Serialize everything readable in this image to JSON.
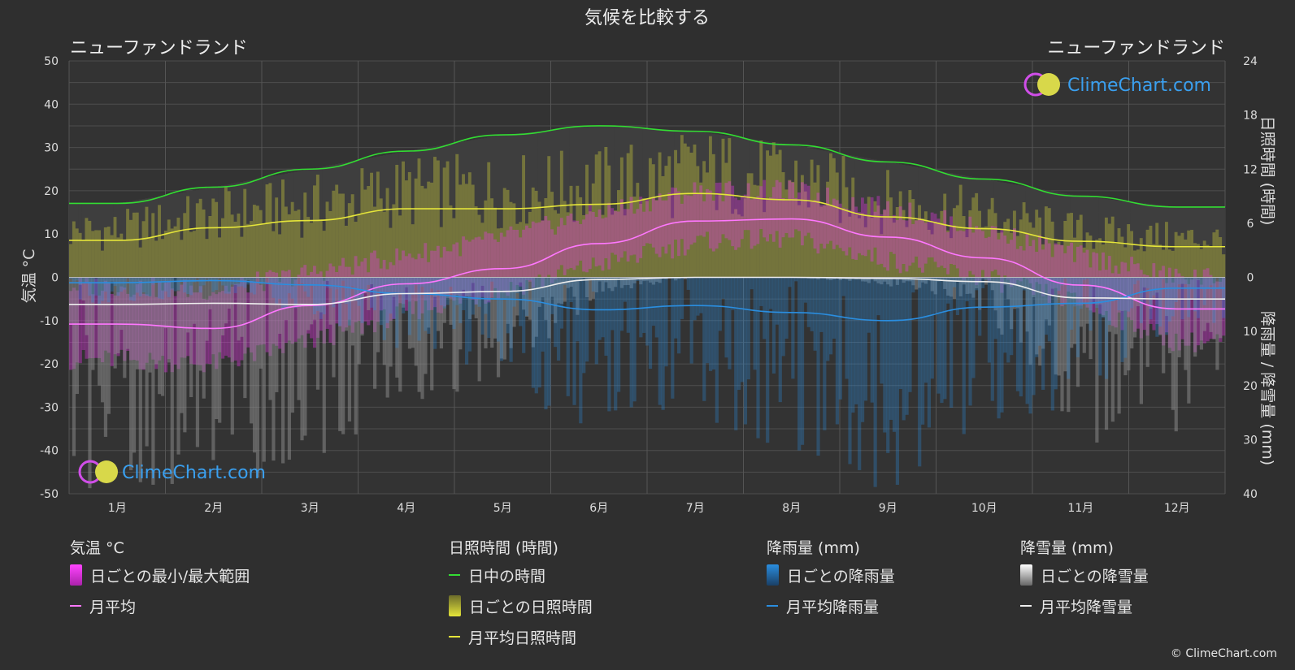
{
  "title": "気候を比較する",
  "location_left": "ニューファンドランド",
  "location_right": "ニューファンドランド",
  "brand": "ClimeChart.com",
  "copyright": "© ClimeChart.com",
  "axes": {
    "left_label": "気温 °C",
    "right_top_label": "日照時間 (時間)",
    "right_bottom_label": "降雨量 / 降雪量 (mm)",
    "left_ticks": [
      "50",
      "40",
      "30",
      "20",
      "10",
      "0",
      "-10",
      "-20",
      "-30",
      "-40",
      "-50"
    ],
    "right_top_ticks": [
      "24",
      "18",
      "12",
      "6",
      "0"
    ],
    "right_bottom_ticks": [
      "10",
      "20",
      "30",
      "40"
    ]
  },
  "legend": {
    "temperature": {
      "header": "気温 °C",
      "range": "日ごとの最小/最大範囲",
      "avg": "月平均"
    },
    "sunshine": {
      "header": "日照時間 (時間)",
      "daylight": "日中の時間",
      "daily": "日ごとの日照時間",
      "avg": "月平均日照時間"
    },
    "rain": {
      "header": "降雨量 (mm)",
      "daily": "日ごとの降雨量",
      "avg": "月平均降雨量"
    },
    "snow": {
      "header": "降雪量 (mm)",
      "daily": "日ごとの降雪量",
      "avg": "月平均降雪量"
    }
  },
  "colors": {
    "background": "#2f2f2f",
    "daylight": "#33dd33",
    "sunshine": "#e5e53a",
    "temp_avg": "#ff77ff",
    "temp_range": "#ee33ee",
    "rain": "#2a8ee0",
    "snow": "#eeeeee"
  },
  "chart_data": {
    "type": "line",
    "categories": [
      "1月",
      "2月",
      "3月",
      "4月",
      "5月",
      "6月",
      "7月",
      "8月",
      "9月",
      "10月",
      "11月",
      "12月"
    ],
    "temperature_ylim": [
      -50,
      50
    ],
    "sunshine_ylim": [
      0,
      24
    ],
    "precip_ylim": [
      0,
      40
    ],
    "series": [
      {
        "name": "日中の時間",
        "axis": "sunshine",
        "values": [
          8.2,
          10.0,
          12.0,
          14.0,
          15.8,
          16.8,
          16.2,
          14.7,
          12.8,
          10.9,
          9.0,
          7.8
        ]
      },
      {
        "name": "月平均日照時間",
        "axis": "sunshine",
        "values": [
          4.1,
          5.5,
          6.3,
          7.6,
          7.6,
          8.1,
          9.3,
          8.6,
          6.7,
          5.4,
          4.0,
          3.4
        ]
      },
      {
        "name": "月平均",
        "axis": "temperature",
        "values": [
          -10.8,
          -11.8,
          -6.5,
          -1.5,
          2.0,
          7.8,
          13.0,
          13.5,
          9.3,
          4.5,
          -1.8,
          -7.3
        ]
      },
      {
        "name": "月平均降雨量",
        "axis": "precip",
        "values": [
          1.0,
          0.6,
          1.4,
          3.0,
          4.0,
          6.0,
          5.2,
          6.5,
          8.0,
          5.5,
          4.8,
          2.0
        ]
      },
      {
        "name": "月平均降雪量",
        "axis": "precip",
        "values": [
          5.0,
          4.8,
          5.0,
          3.0,
          2.6,
          0.4,
          0.0,
          0.0,
          0.2,
          0.8,
          3.8,
          4.0
        ]
      }
    ],
    "daily_temp_range_by_month": [
      [
        -19,
        -2
      ],
      [
        -20,
        -3
      ],
      [
        -15,
        1
      ],
      [
        -8,
        5
      ],
      [
        -3,
        9
      ],
      [
        3,
        15
      ],
      [
        8,
        20
      ],
      [
        9,
        20
      ],
      [
        4,
        16
      ],
      [
        0,
        11
      ],
      [
        -6,
        5
      ],
      [
        -15,
        0
      ]
    ]
  }
}
